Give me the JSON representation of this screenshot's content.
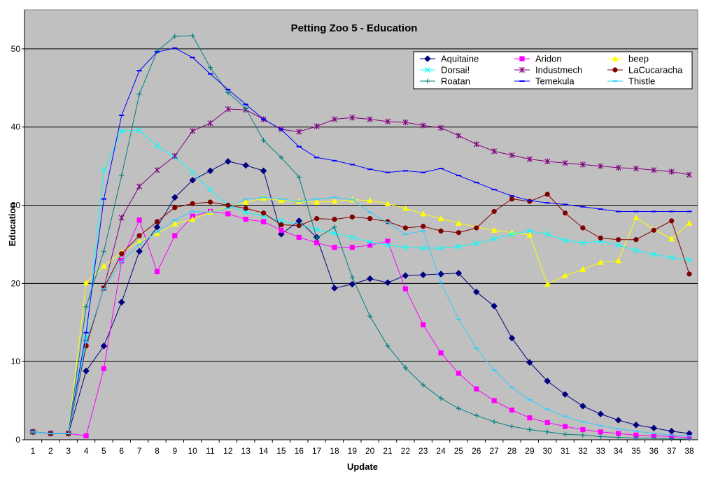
{
  "chart_data": {
    "type": "line",
    "title": "Petting Zoo 5 - Education",
    "xlabel": "Update",
    "ylabel": "Education",
    "ylim": [
      0,
      55
    ],
    "yticks": [
      0,
      10,
      20,
      30,
      40,
      50
    ],
    "grid": true,
    "legend_position": "top-right",
    "plot_background": "#c0c0c0",
    "x": [
      1,
      2,
      3,
      4,
      5,
      6,
      7,
      8,
      9,
      10,
      11,
      12,
      13,
      14,
      15,
      16,
      17,
      18,
      19,
      20,
      21,
      22,
      23,
      24,
      25,
      26,
      27,
      28,
      29,
      30,
      31,
      32,
      33,
      34,
      35,
      36,
      37,
      38
    ],
    "series": [
      {
        "name": "Aquitaine",
        "color": "#000080",
        "marker": "diamond",
        "values": [
          1,
          0.8,
          0.8,
          8.8,
          12,
          17.6,
          24.1,
          27.2,
          31,
          33.2,
          34.4,
          35.6,
          35.1,
          34.4,
          26.3,
          28,
          25.9,
          19.4,
          19.9,
          20.6,
          20.1,
          21,
          21.1,
          21.2,
          21.3,
          18.9,
          17.1,
          13,
          9.9,
          7.5,
          5.8,
          4.3,
          3.3,
          2.5,
          1.9,
          1.5,
          1.1,
          0.8
        ]
      },
      {
        "name": "Aridon",
        "color": "#ff00ff",
        "marker": "square",
        "values": [
          1,
          0.8,
          0.8,
          0.5,
          9.1,
          22.9,
          28.1,
          21.5,
          26.1,
          28.6,
          29.2,
          28.9,
          28.2,
          27.9,
          26.8,
          25.9,
          25.2,
          24.6,
          24.6,
          24.9,
          25.4,
          19.3,
          14.7,
          11.1,
          8.5,
          6.5,
          5,
          3.8,
          2.8,
          2.2,
          1.7,
          1.3,
          1,
          0.8,
          0.6,
          0.5,
          0.4,
          0.3
        ]
      },
      {
        "name": "beep",
        "color": "#ffff00",
        "marker": "triangle",
        "values": [
          1,
          0.8,
          0.8,
          20.1,
          22.2,
          24,
          25.3,
          26.4,
          27.6,
          28.2,
          29.1,
          29.8,
          30.4,
          30.9,
          30.6,
          30.5,
          30.4,
          30.5,
          30.7,
          30.6,
          30.2,
          29.6,
          28.9,
          28.3,
          27.7,
          27.2,
          26.8,
          26.5,
          26.2,
          19.9,
          21,
          21.8,
          22.7,
          22.9,
          28.4,
          26.9,
          25.7,
          27.7
        ]
      },
      {
        "name": "Dorsai!",
        "color": "#00ffff",
        "marker": "x",
        "values": [
          1,
          0.8,
          0.8,
          13,
          34.5,
          39.5,
          39.6,
          37.6,
          36.1,
          34.2,
          32,
          30,
          29.1,
          28.6,
          28,
          27.5,
          26.9,
          26.4,
          25.9,
          25.3,
          24.9,
          24.6,
          24.5,
          24.5,
          24.7,
          25.1,
          25.7,
          26.3,
          26.7,
          26.3,
          25.5,
          25.2,
          25.4,
          24.9,
          24.2,
          23.7,
          23.3,
          23
        ]
      },
      {
        "name": "Industmech",
        "color": "#800080",
        "marker": "star",
        "values": [
          1,
          0.8,
          0.8,
          12.4,
          19.4,
          28.4,
          32.4,
          34.5,
          36.3,
          39.5,
          40.5,
          42.3,
          42.2,
          41,
          39.7,
          39.4,
          40.1,
          41,
          41.2,
          41,
          40.7,
          40.6,
          40.2,
          39.9,
          38.9,
          37.8,
          36.9,
          36.4,
          35.9,
          35.6,
          35.4,
          35.2,
          35,
          34.8,
          34.7,
          34.5,
          34.3,
          33.9
        ]
      },
      {
        "name": "LaCucaracha",
        "color": "#800000",
        "marker": "circle",
        "values": [
          1,
          0.8,
          0.8,
          12,
          19.4,
          23.8,
          26.1,
          27.9,
          29.7,
          30.2,
          30.4,
          30,
          29.6,
          29,
          27.5,
          27.4,
          28.3,
          28.2,
          28.5,
          28.3,
          27.9,
          27.1,
          27.3,
          26.7,
          26.5,
          27.1,
          29.2,
          30.8,
          30.5,
          31.4,
          29,
          27.1,
          25.8,
          25.6,
          25.6,
          26.8,
          28,
          21.2
        ]
      },
      {
        "name": "Roatan",
        "color": "#008080",
        "marker": "plus",
        "values": [
          1,
          0.8,
          0.8,
          17,
          24.1,
          33.8,
          44.2,
          49.7,
          51.6,
          51.7,
          47.6,
          44.4,
          42.4,
          38.3,
          36.1,
          33.6,
          25.8,
          27.2,
          20.8,
          15.8,
          12,
          9.2,
          7,
          5.3,
          4,
          3.1,
          2.3,
          1.7,
          1.3,
          1,
          0.7,
          0.6,
          0.4,
          0.3,
          0.2,
          0.2,
          0.1,
          0.1
        ]
      },
      {
        "name": "Temekula",
        "color": "#0000ff",
        "marker": "dash",
        "values": [
          1,
          0.8,
          0.8,
          13.7,
          30.8,
          41.5,
          47.2,
          49.6,
          50.1,
          48.9,
          46.8,
          44.8,
          42.9,
          41,
          39.7,
          37.5,
          36.1,
          35.7,
          35.2,
          34.6,
          34.2,
          34.4,
          34.2,
          34.7,
          33.8,
          32.9,
          32,
          31.2,
          30.6,
          30.3,
          30.1,
          29.8,
          29.5,
          29.2,
          29.2,
          29.2,
          29.2,
          29.2
        ]
      },
      {
        "name": "Thistle",
        "color": "#33ccff",
        "marker": "dash",
        "values": [
          1,
          0.8,
          0.8,
          12.5,
          19.3,
          22.8,
          25,
          26.6,
          28.1,
          29.2,
          29.1,
          29.6,
          30.8,
          31,
          30.8,
          30.5,
          30.8,
          31,
          30.7,
          29.1,
          27.8,
          26.3,
          26.7,
          20.1,
          15.4,
          11.7,
          8.9,
          6.7,
          5.1,
          3.9,
          3,
          2.3,
          1.8,
          1.4,
          1.1,
          0.8,
          0.6,
          0.5
        ]
      }
    ]
  }
}
